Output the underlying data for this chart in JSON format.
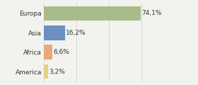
{
  "categories": [
    "Europa",
    "Asia",
    "Africa",
    "America"
  ],
  "values": [
    74.1,
    16.2,
    6.6,
    3.2
  ],
  "bar_colors": [
    "#a8bc8a",
    "#6b8fbf",
    "#e8a97a",
    "#e8d080"
  ],
  "labels": [
    "74,1%",
    "16,2%",
    "6,6%",
    "3,2%"
  ],
  "background_color": "#f2f2ee",
  "xlim": [
    0,
    100
  ],
  "bar_height": 0.75,
  "label_fontsize": 6.5,
  "tick_fontsize": 6.5,
  "grid_ticks": [
    0,
    25,
    50,
    75,
    100
  ],
  "grid_color": "#cccccc"
}
